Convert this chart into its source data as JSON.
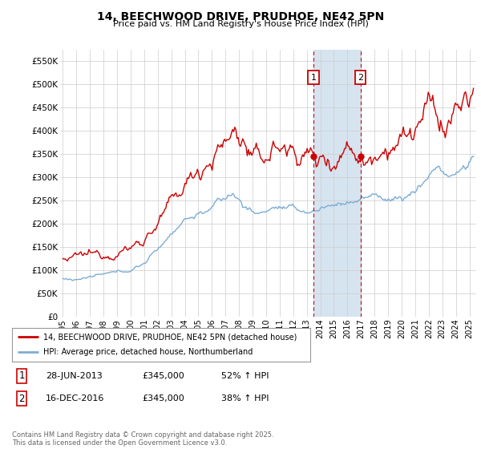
{
  "title": "14, BEECHWOOD DRIVE, PRUDHOE, NE42 5PN",
  "subtitle": "Price paid vs. HM Land Registry's House Price Index (HPI)",
  "ylabel_ticks": [
    "£0",
    "£50K",
    "£100K",
    "£150K",
    "£200K",
    "£250K",
    "£300K",
    "£350K",
    "£400K",
    "£450K",
    "£500K",
    "£550K"
  ],
  "ytick_values": [
    0,
    50000,
    100000,
    150000,
    200000,
    250000,
    300000,
    350000,
    400000,
    450000,
    500000,
    550000
  ],
  "ylim": [
    0,
    575000
  ],
  "xlim_start": 1994.8,
  "xlim_end": 2025.5,
  "sale1_x": 2013.49,
  "sale2_x": 2016.96,
  "red_line_color": "#cc0000",
  "blue_line_color": "#7dadd4",
  "vline_color": "#cc0000",
  "highlight_color": "#d6e4f0",
  "marker_box_color": "#cc0000",
  "legend_red_label": "14, BEECHWOOD DRIVE, PRUDHOE, NE42 5PN (detached house)",
  "legend_blue_label": "HPI: Average price, detached house, Northumberland",
  "sale_table": [
    {
      "num": "1",
      "date": "28-JUN-2013",
      "price": "£345,000",
      "hpi": "52% ↑ HPI"
    },
    {
      "num": "2",
      "date": "16-DEC-2016",
      "price": "£345,000",
      "hpi": "38% ↑ HPI"
    }
  ],
  "footer": "Contains HM Land Registry data © Crown copyright and database right 2025.\nThis data is licensed under the Open Government Licence v3.0.",
  "background_color": "#ffffff",
  "grid_color": "#cccccc",
  "xtick_years": [
    1995,
    1996,
    1997,
    1998,
    1999,
    2000,
    2001,
    2002,
    2003,
    2004,
    2005,
    2006,
    2007,
    2008,
    2009,
    2010,
    2011,
    2012,
    2013,
    2014,
    2015,
    2016,
    2017,
    2018,
    2019,
    2020,
    2021,
    2022,
    2023,
    2024,
    2025
  ]
}
